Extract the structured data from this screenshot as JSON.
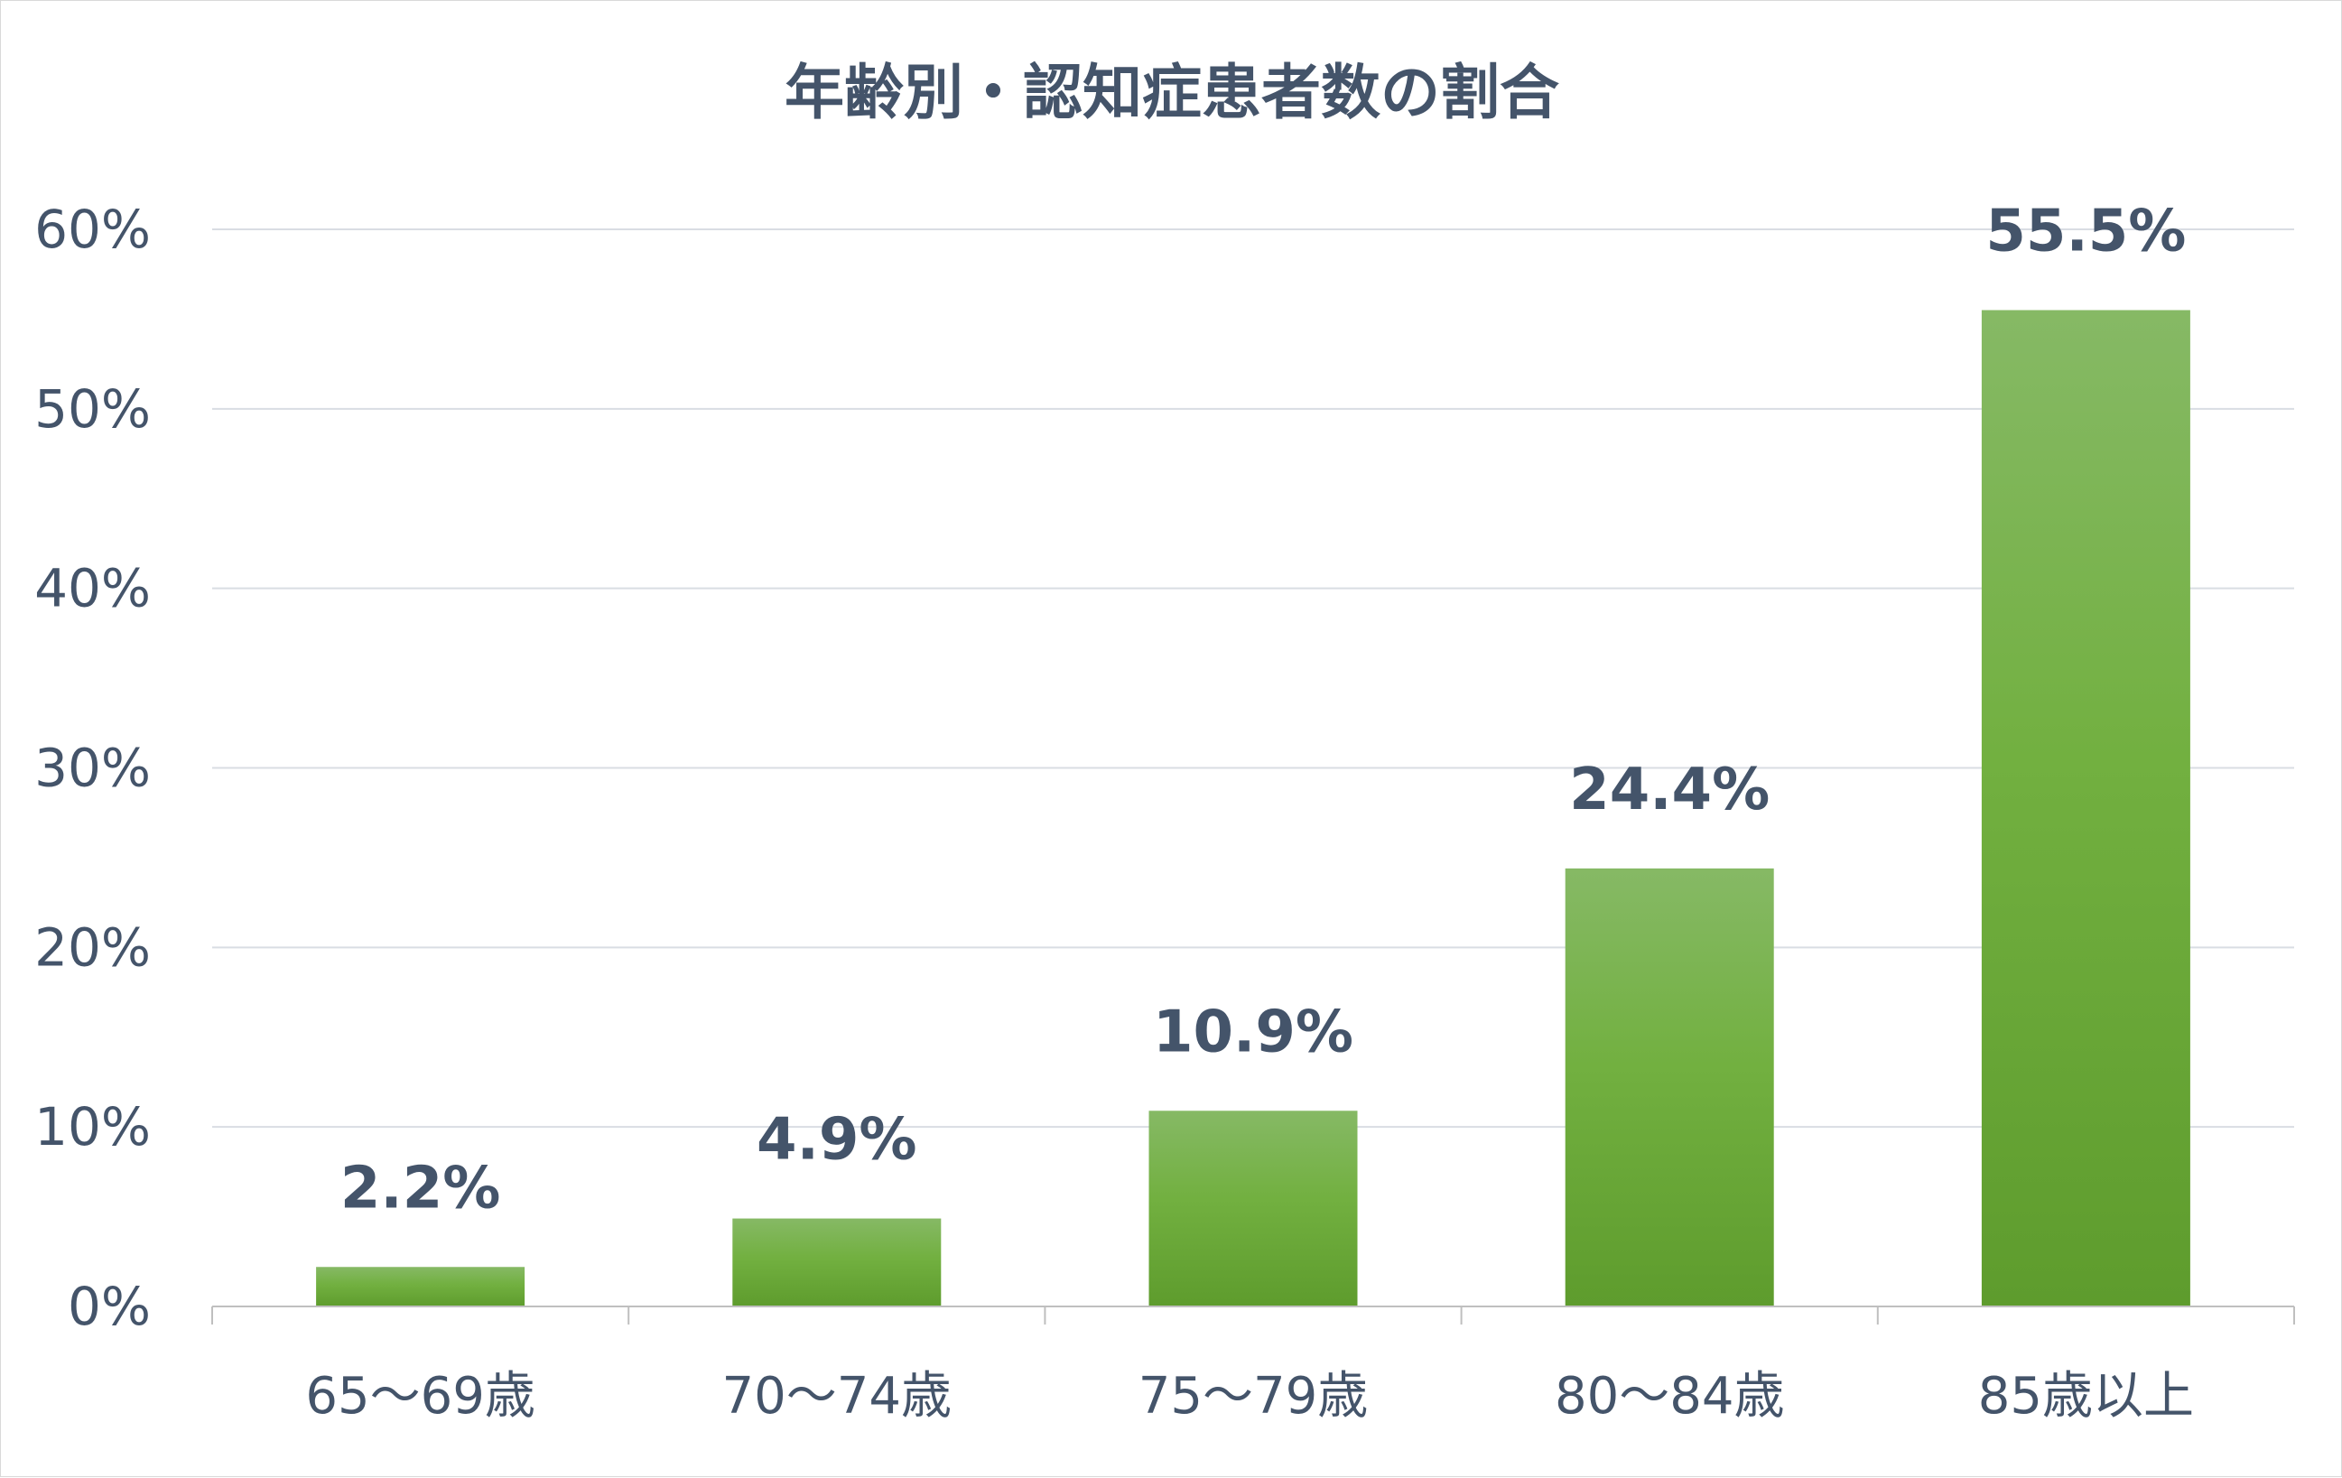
{
  "chart_data": {
    "type": "bar",
    "title": "年齢別・認知症患者数の割合",
    "categories": [
      "65〜69歳",
      "70〜74歳",
      "75〜79歳",
      "80〜84歳",
      "85歳以上"
    ],
    "values": [
      2.2,
      4.9,
      10.9,
      24.4,
      55.5
    ],
    "data_labels": [
      "2.2%",
      "4.9%",
      "10.9%",
      "24.4%",
      "55.5%"
    ],
    "ylim": [
      0,
      60
    ],
    "yticks": [
      "0%",
      "10%",
      "20%",
      "30%",
      "40%",
      "50%",
      "60%"
    ],
    "xlabel": "",
    "ylabel": "",
    "grid": true,
    "legend": "none",
    "colors": {
      "bar_top": "#86b965",
      "bar_mid": "#72b040",
      "bar_bottom": "#5e9c2d",
      "text": "#44546a",
      "grid": "#d9dde3"
    }
  }
}
